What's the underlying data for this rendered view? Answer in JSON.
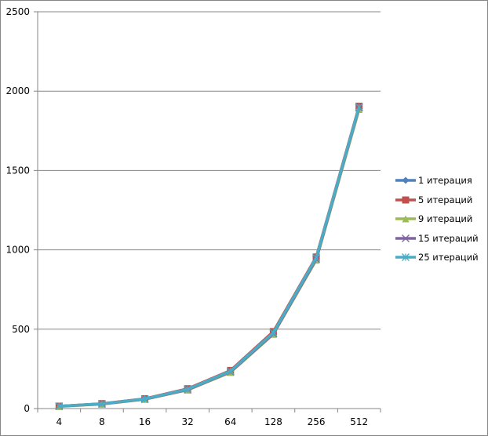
{
  "chart_data": {
    "type": "line",
    "title": "",
    "xlabel": "",
    "ylabel": "",
    "categories": [
      "4",
      "8",
      "16",
      "32",
      "64",
      "128",
      "256",
      "512"
    ],
    "ylim": [
      0,
      2500
    ],
    "yticks": [
      0,
      500,
      1000,
      1500,
      2000,
      2500
    ],
    "grid": "horizontal",
    "legend_position": "right",
    "series": [
      {
        "name": "1 итерация",
        "color": "#4F81BD",
        "marker": "diamond",
        "values": [
          15,
          30,
          60,
          120,
          235,
          475,
          940,
          1890
        ]
      },
      {
        "name": "5 итераций",
        "color": "#C0504D",
        "marker": "square",
        "values": [
          15,
          31,
          62,
          125,
          240,
          485,
          955,
          1905
        ]
      },
      {
        "name": "9 итераций",
        "color": "#9BBB59",
        "marker": "triangle",
        "values": [
          13,
          28,
          58,
          117,
          228,
          468,
          935,
          1885
        ]
      },
      {
        "name": "15 итераций",
        "color": "#8064A2",
        "marker": "x",
        "values": [
          14,
          29,
          59,
          119,
          232,
          472,
          942,
          1895
        ]
      },
      {
        "name": "25 итераций",
        "color": "#4BACC6",
        "marker": "star",
        "values": [
          15,
          30,
          61,
          122,
          236,
          478,
          950,
          1900
        ]
      }
    ]
  },
  "legend": {
    "items": [
      "1 итерация",
      "5 итераций",
      "9 итераций",
      "15 итераций",
      "25 итераций"
    ]
  }
}
